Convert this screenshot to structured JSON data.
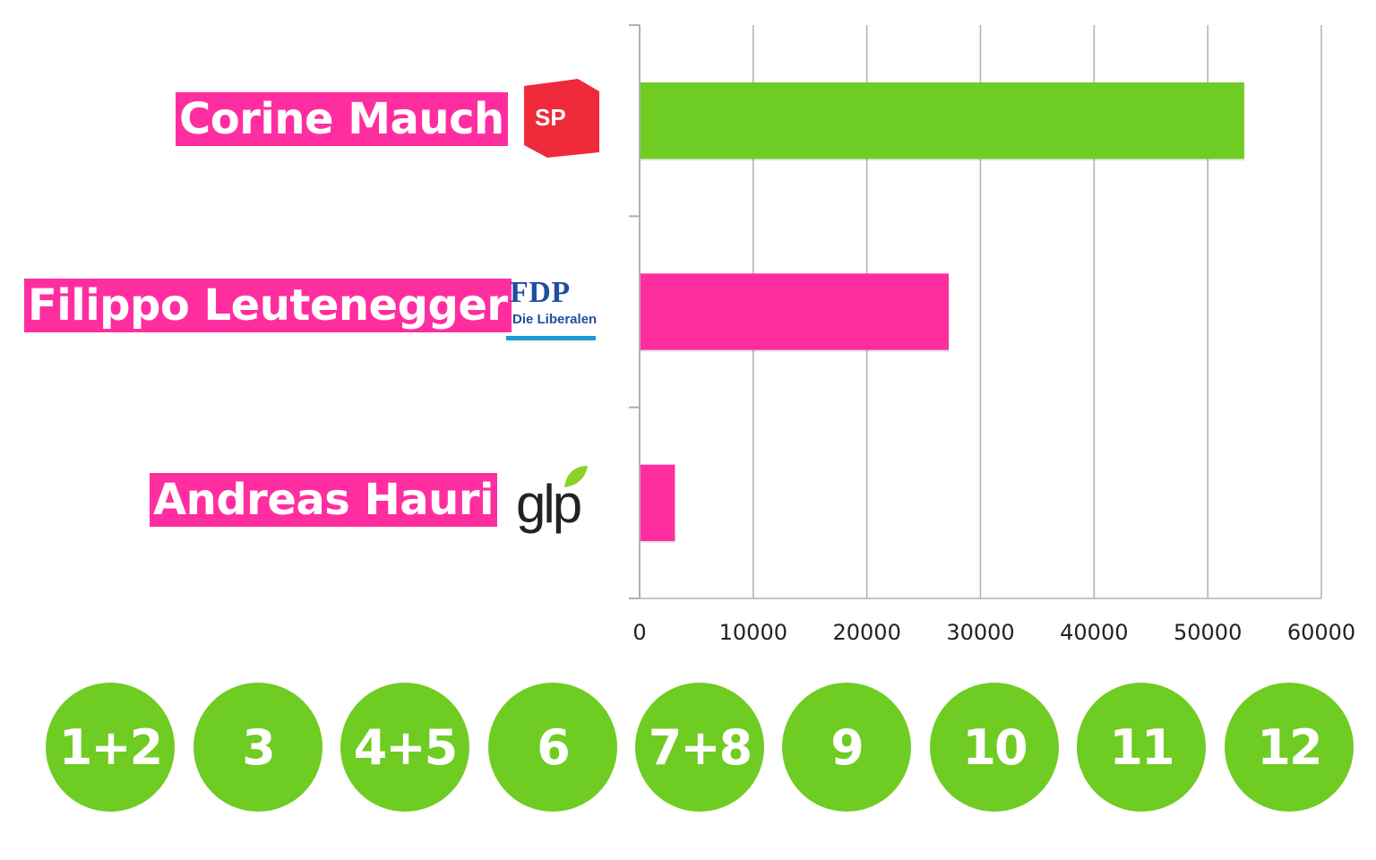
{
  "chart_data": {
    "type": "bar",
    "orientation": "horizontal",
    "categories": [
      "Corine Mauch",
      "Filippo Leutenegger",
      "Andreas Hauri"
    ],
    "values": [
      53200,
      27200,
      3100
    ],
    "bar_colors": [
      "#6fcc22",
      "#ff2ea0",
      "#ff2ea0"
    ],
    "xlim": [
      0,
      60000
    ],
    "x_ticks": [
      "0",
      "10000",
      "20000",
      "30000",
      "40000",
      "50000",
      "60000"
    ],
    "grid": "vertical",
    "title": "",
    "xlabel": "",
    "ylabel": ""
  },
  "candidates": [
    {
      "name": "Corine Mauch",
      "party_logo": "SP",
      "logo_icon": "sp-logo-icon"
    },
    {
      "name": "Filippo Leutenegger",
      "party_logo": "FDP",
      "party_logo_sub": "Die Liberalen",
      "logo_icon": "fdp-logo-icon"
    },
    {
      "name": "Andreas Hauri",
      "party_logo": "glp",
      "logo_icon": "glp-logo-icon"
    }
  ],
  "districts": [
    "1+2",
    "3",
    "4+5",
    "6",
    "7+8",
    "9",
    "10",
    "11",
    "12"
  ],
  "colors": {
    "accent_green": "#6fcc22",
    "accent_pink": "#ff2ea0",
    "sp_red": "#ee2a3b",
    "fdp_blue": "#1f4ea3",
    "fdp_rule": "#1c9ad6",
    "grid": "#b0b0b0"
  }
}
